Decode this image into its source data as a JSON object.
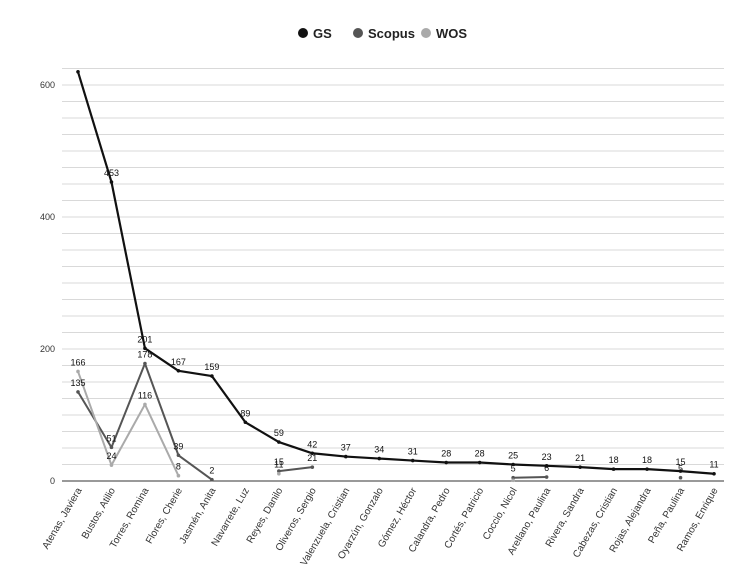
{
  "chart_data": {
    "type": "line",
    "categories": [
      "Atenas, Javiera",
      "Bustos, Atilio",
      "Torres, Romina",
      "Flores, Cherie",
      "Jasmén, Anita",
      "Navarrete, Luz",
      "Reyes, Danilo",
      "Oliveros, Sergio",
      "Valenzuela, Cristian",
      "Oyarzún, Gonzalo",
      "Gómez, Héctor",
      "Calandra, Pedro",
      "Cortés, Patricio",
      "Coccio, Nicol",
      "Arellano, Paulina",
      "Rivera, Sandra",
      "Cabezas, Cristian",
      "Rojas, Alejandra",
      "Peña, Paulina",
      "Ramos, Enrique"
    ],
    "series": [
      {
        "name": "GS",
        "color": "#111111",
        "values": [
          620,
          453,
          201,
          167,
          159,
          89,
          59,
          42,
          37,
          34,
          31,
          28,
          28,
          25,
          23,
          21,
          18,
          18,
          15,
          11
        ],
        "labels": [
          "",
          "453",
          "201",
          "167",
          "159",
          "89",
          "59",
          "42",
          "37",
          "34",
          "31",
          "28",
          "28",
          "25",
          "23",
          "21",
          "18",
          "18",
          "15",
          "11"
        ]
      },
      {
        "name": "Scopus",
        "color": "#555555",
        "values": [
          135,
          51,
          178,
          39,
          2,
          null,
          15,
          21,
          null,
          null,
          null,
          null,
          null,
          5,
          6,
          null,
          null,
          null,
          5,
          null
        ],
        "labels": [
          "135",
          "51",
          "178",
          "39",
          "2",
          "",
          "15",
          "21",
          "",
          "",
          "",
          "",
          "",
          "5",
          "6",
          "",
          "",
          "",
          "5",
          ""
        ]
      },
      {
        "name": "WOS",
        "color": "#aaaaaa",
        "values": [
          166,
          24,
          116,
          8,
          null,
          null,
          11,
          null,
          null,
          null,
          null,
          null,
          null,
          1,
          null,
          null,
          null,
          null,
          null,
          null
        ],
        "labels": [
          "166",
          "24",
          "116",
          "8",
          "",
          "",
          "11",
          "",
          "",
          "",
          "",
          "",
          "",
          "",
          "",
          "",
          "",
          "",
          "",
          ""
        ]
      }
    ],
    "ylim": [
      0,
      620
    ],
    "yticks": [
      "0",
      "200",
      "400",
      "600"
    ],
    "grid": true,
    "legend": "top-center"
  }
}
